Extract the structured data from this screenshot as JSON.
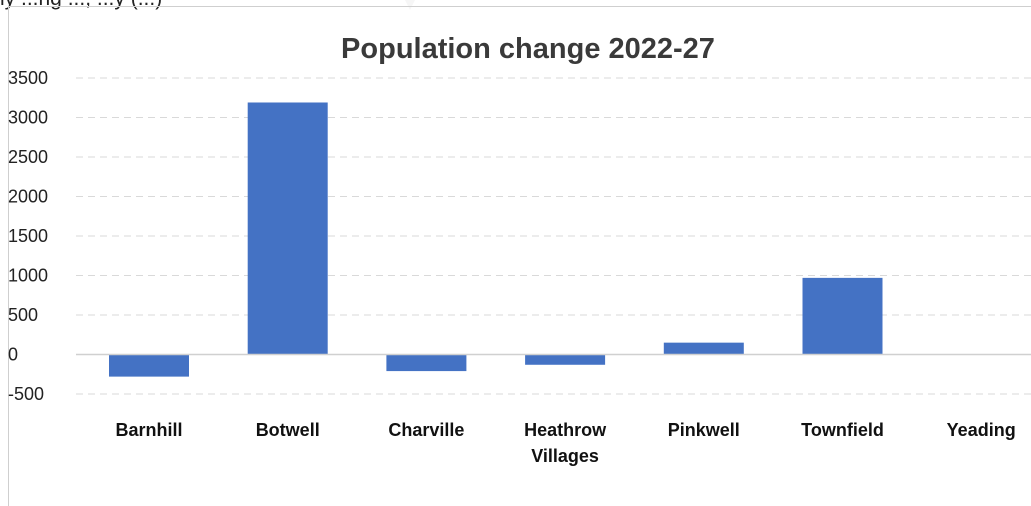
{
  "page": {
    "top_snippet": "ly   ...ng                                      ...,                              ...y (...)"
  },
  "chart_data": {
    "type": "bar",
    "title": "Population change 2022-27",
    "xlabel": "",
    "ylabel": "",
    "categories": [
      "Barnhill",
      "Botwell",
      "Charville",
      "Heathrow Villages",
      "Pinkwell",
      "Townfield",
      "Yeading"
    ],
    "category_lines": [
      [
        "Barnhill"
      ],
      [
        "Botwell"
      ],
      [
        "Charville"
      ],
      [
        "Heathrow",
        "Villages"
      ],
      [
        "Pinkwell"
      ],
      [
        "Townfield"
      ],
      [
        "Yeading"
      ]
    ],
    "values": [
      -280,
      3190,
      -210,
      -130,
      150,
      970,
      0
    ],
    "ylim": [
      -500,
      3500
    ],
    "yticks": [
      3500,
      3000,
      2500,
      2000,
      1500,
      1000,
      500,
      0,
      -500
    ],
    "grid": true,
    "legend": "none",
    "colors": {
      "bar": "#4472c4",
      "grid": "#d9d9d9",
      "axis": "#d0d0d0",
      "title": "#3a3a3a"
    }
  }
}
